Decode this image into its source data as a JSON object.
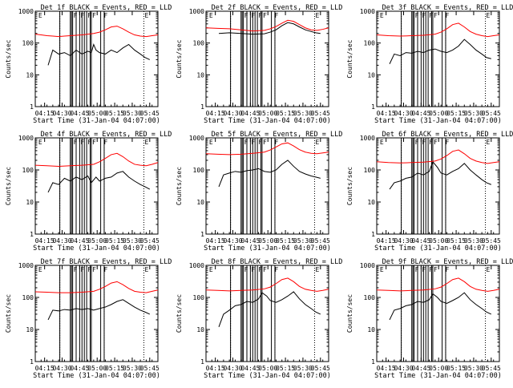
{
  "chart_data": [
    {
      "type": "line",
      "title": "Det 1f BLACK = Events, RED = LLD",
      "xlabel": "Start Time (31-Jan-04 04:07:00)",
      "ylabel": "Counts/sec",
      "xticks": [
        "04:15",
        "04:30",
        "04:45",
        "05:00",
        "05:15",
        "05:30",
        "05:45"
      ],
      "yticks": [
        "1",
        "10",
        "100",
        "1000"
      ],
      "ylim": [
        1,
        1000
      ],
      "yscale": "log",
      "xlim_minutes": [
        0,
        105
      ],
      "series": [
        {
          "name": "Events",
          "color": "#000000",
          "x": [
            11,
            15,
            20,
            25,
            30,
            35,
            40,
            45,
            48,
            50,
            52,
            55,
            60,
            65,
            70,
            75,
            80,
            85,
            90,
            94,
            98
          ],
          "values": [
            20,
            60,
            45,
            50,
            40,
            60,
            45,
            55,
            50,
            90,
            60,
            50,
            45,
            60,
            50,
            70,
            90,
            60,
            45,
            35,
            30
          ]
        },
        {
          "name": "LLD",
          "color": "#ff0000",
          "x": [
            0,
            5,
            10,
            15,
            20,
            25,
            30,
            35,
            40,
            45,
            50,
            55,
            60,
            65,
            70,
            75,
            80,
            85,
            90,
            95,
            100,
            105
          ],
          "values": [
            190,
            180,
            170,
            165,
            160,
            165,
            170,
            175,
            180,
            190,
            200,
            220,
            260,
            320,
            340,
            280,
            220,
            180,
            165,
            160,
            170,
            180
          ]
        }
      ]
    },
    {
      "type": "line",
      "title": "Det 2f BLACK = Events, RED = LLD",
      "xlabel": "Start Time (31-Jan-04 04:07:00)",
      "ylabel": "Counts/sec",
      "xticks": [
        "04:15",
        "04:30",
        "04:45",
        "05:00",
        "05:15",
        "05:30",
        "05:45"
      ],
      "yticks": [
        "1",
        "10",
        "100",
        "1000"
      ],
      "ylim": [
        1,
        1000
      ],
      "yscale": "log",
      "xlim_minutes": [
        0,
        105
      ],
      "series": [
        {
          "name": "Events",
          "color": "#000000",
          "x": [
            11,
            20,
            30,
            40,
            50,
            55,
            60,
            65,
            70,
            75,
            80,
            85,
            90,
            94,
            98
          ],
          "values": [
            200,
            210,
            200,
            190,
            195,
            220,
            260,
            350,
            440,
            400,
            320,
            260,
            230,
            210,
            200
          ]
        },
        {
          "name": "LLD",
          "color": "#ff0000",
          "x": [
            0,
            10,
            20,
            30,
            40,
            50,
            55,
            60,
            65,
            70,
            75,
            80,
            85,
            90,
            95,
            100,
            105
          ],
          "values": [
            300,
            290,
            280,
            260,
            240,
            250,
            280,
            330,
            420,
            520,
            480,
            380,
            300,
            260,
            250,
            270,
            300
          ]
        }
      ]
    },
    {
      "type": "line",
      "title": "Det 3f BLACK = Events, RED = LLD",
      "xlabel": "Start Time (31-Jan-04 04:07:00)",
      "ylabel": "Counts/sec",
      "xticks": [
        "04:15",
        "04:30",
        "04:45",
        "05:00",
        "05:15",
        "05:30",
        "05:45"
      ],
      "yticks": [
        "1",
        "10",
        "100",
        "1000"
      ],
      "ylim": [
        1,
        1000
      ],
      "yscale": "log",
      "xlim_minutes": [
        0,
        105
      ],
      "series": [
        {
          "name": "Events",
          "color": "#000000",
          "x": [
            11,
            15,
            20,
            25,
            30,
            35,
            40,
            45,
            50,
            55,
            60,
            65,
            70,
            75,
            80,
            85,
            90,
            94,
            98
          ],
          "values": [
            22,
            45,
            40,
            50,
            48,
            55,
            50,
            60,
            65,
            55,
            50,
            60,
            80,
            130,
            90,
            60,
            45,
            35,
            32
          ]
        },
        {
          "name": "LLD",
          "color": "#ff0000",
          "x": [
            0,
            10,
            20,
            30,
            40,
            50,
            55,
            60,
            65,
            70,
            75,
            80,
            85,
            90,
            95,
            100,
            105
          ],
          "values": [
            180,
            170,
            165,
            170,
            175,
            190,
            220,
            280,
            380,
            420,
            320,
            230,
            190,
            170,
            160,
            170,
            180
          ]
        }
      ]
    },
    {
      "type": "line",
      "title": "Det 4f BLACK = Events, RED = LLD",
      "xlabel": "Start Time (31-Jan-04 04:07:00)",
      "ylabel": "Counts/sec",
      "xticks": [
        "04:15",
        "04:30",
        "04:45",
        "05:00",
        "05:15",
        "05:30",
        "05:45"
      ],
      "yticks": [
        "1",
        "10",
        "100",
        "1000"
      ],
      "ylim": [
        1,
        1000
      ],
      "yscale": "log",
      "xlim_minutes": [
        0,
        105
      ],
      "series": [
        {
          "name": "Events",
          "color": "#000000",
          "x": [
            11,
            15,
            20,
            25,
            30,
            35,
            40,
            45,
            48,
            52,
            55,
            60,
            65,
            70,
            75,
            80,
            85,
            90,
            94,
            98
          ],
          "values": [
            20,
            40,
            35,
            55,
            45,
            60,
            50,
            65,
            40,
            60,
            45,
            55,
            60,
            80,
            90,
            60,
            45,
            35,
            30,
            25
          ]
        },
        {
          "name": "LLD",
          "color": "#ff0000",
          "x": [
            0,
            10,
            20,
            30,
            40,
            50,
            55,
            60,
            65,
            70,
            75,
            80,
            85,
            90,
            95,
            100,
            105
          ],
          "values": [
            140,
            135,
            130,
            135,
            140,
            150,
            180,
            230,
            300,
            330,
            260,
            190,
            150,
            140,
            135,
            150,
            170
          ]
        }
      ]
    },
    {
      "type": "line",
      "title": "Det 5f BLACK = Events, RED = LLD",
      "xlabel": "Start Time (31-Jan-04 04:07:00)",
      "ylabel": "Counts/sec",
      "xticks": [
        "04:15",
        "04:30",
        "04:45",
        "05:00",
        "05:15",
        "05:30",
        "05:45"
      ],
      "yticks": [
        "1",
        "10",
        "100",
        "1000"
      ],
      "ylim": [
        1,
        1000
      ],
      "yscale": "log",
      "xlim_minutes": [
        0,
        105
      ],
      "series": [
        {
          "name": "Events",
          "color": "#000000",
          "x": [
            11,
            15,
            20,
            25,
            30,
            35,
            40,
            45,
            50,
            55,
            60,
            65,
            70,
            75,
            80,
            85,
            90,
            94,
            98
          ],
          "values": [
            30,
            70,
            80,
            90,
            85,
            95,
            100,
            110,
            90,
            85,
            100,
            150,
            200,
            130,
            90,
            75,
            65,
            60,
            55
          ]
        },
        {
          "name": "LLD",
          "color": "#ff0000",
          "x": [
            0,
            10,
            20,
            30,
            40,
            50,
            55,
            60,
            65,
            70,
            75,
            80,
            85,
            90,
            95,
            100,
            105
          ],
          "values": [
            320,
            310,
            300,
            310,
            330,
            360,
            420,
            520,
            650,
            700,
            560,
            430,
            360,
            330,
            320,
            340,
            360
          ]
        }
      ]
    },
    {
      "type": "line",
      "title": "Det 6f BLACK = Events, RED = LLD",
      "xlabel": "Start Time (31-Jan-04 04:07:00)",
      "ylabel": "Counts/sec",
      "xticks": [
        "04:15",
        "04:30",
        "04:45",
        "05:00",
        "05:15",
        "05:30",
        "05:45"
      ],
      "yticks": [
        "1",
        "10",
        "100",
        "1000"
      ],
      "ylim": [
        1,
        1000
      ],
      "yscale": "log",
      "xlim_minutes": [
        0,
        105
      ],
      "series": [
        {
          "name": "Events",
          "color": "#000000",
          "x": [
            11,
            15,
            20,
            25,
            30,
            35,
            40,
            45,
            48,
            52,
            55,
            60,
            65,
            70,
            75,
            80,
            85,
            90,
            94,
            98
          ],
          "values": [
            25,
            40,
            45,
            55,
            60,
            80,
            70,
            90,
            180,
            120,
            80,
            70,
            90,
            110,
            160,
            100,
            70,
            50,
            40,
            35
          ]
        },
        {
          "name": "LLD",
          "color": "#ff0000",
          "x": [
            0,
            10,
            20,
            30,
            40,
            50,
            55,
            60,
            65,
            70,
            75,
            80,
            85,
            90,
            95,
            100,
            105
          ],
          "values": [
            180,
            170,
            165,
            170,
            175,
            190,
            220,
            280,
            380,
            420,
            320,
            230,
            190,
            170,
            160,
            170,
            180
          ]
        }
      ]
    },
    {
      "type": "line",
      "title": "Det 7f BLACK = Events, RED = LLD",
      "xlabel": "Start Time (31-Jan-04 04:07:00)",
      "ylabel": "Counts/sec",
      "xticks": [
        "04:15",
        "04:30",
        "04:45",
        "05:00",
        "05:15",
        "05:30",
        "05:45"
      ],
      "yticks": [
        "1",
        "10",
        "100",
        "1000"
      ],
      "ylim": [
        1,
        1000
      ],
      "yscale": "log",
      "xlim_minutes": [
        0,
        105
      ],
      "series": [
        {
          "name": "Events",
          "color": "#000000",
          "x": [
            11,
            15,
            20,
            25,
            30,
            35,
            40,
            45,
            50,
            55,
            60,
            65,
            70,
            75,
            80,
            85,
            90,
            94,
            98
          ],
          "values": [
            20,
            40,
            38,
            42,
            40,
            45,
            42,
            45,
            40,
            45,
            50,
            60,
            75,
            85,
            65,
            50,
            40,
            35,
            30
          ]
        },
        {
          "name": "LLD",
          "color": "#ff0000",
          "x": [
            0,
            10,
            20,
            30,
            40,
            50,
            55,
            60,
            65,
            70,
            75,
            80,
            85,
            90,
            95,
            100,
            105
          ],
          "values": [
            150,
            145,
            140,
            140,
            145,
            155,
            180,
            220,
            280,
            310,
            250,
            190,
            155,
            145,
            140,
            155,
            170
          ]
        }
      ]
    },
    {
      "type": "line",
      "title": "Det 8f BLACK = Events, RED = LLD",
      "xlabel": "Start Time (31-Jan-04 04:07:00)",
      "ylabel": "Counts/sec",
      "xticks": [
        "04:15",
        "04:30",
        "04:45",
        "05:00",
        "05:15",
        "05:30",
        "05:45"
      ],
      "yticks": [
        "1",
        "10",
        "100",
        "1000"
      ],
      "ylim": [
        1,
        1000
      ],
      "yscale": "log",
      "xlim_minutes": [
        0,
        105
      ],
      "series": [
        {
          "name": "Events",
          "color": "#000000",
          "x": [
            11,
            15,
            20,
            25,
            30,
            35,
            40,
            45,
            48,
            52,
            55,
            60,
            65,
            70,
            75,
            80,
            85,
            90,
            94,
            98
          ],
          "values": [
            12,
            30,
            40,
            55,
            60,
            75,
            70,
            90,
            140,
            110,
            80,
            70,
            85,
            110,
            150,
            90,
            60,
            45,
            35,
            30
          ]
        },
        {
          "name": "LLD",
          "color": "#ff0000",
          "x": [
            0,
            10,
            20,
            30,
            40,
            50,
            55,
            60,
            65,
            70,
            75,
            80,
            85,
            90,
            95,
            100,
            105
          ],
          "values": [
            170,
            165,
            160,
            165,
            170,
            185,
            210,
            270,
            360,
            400,
            310,
            220,
            180,
            165,
            155,
            165,
            180
          ]
        }
      ]
    },
    {
      "type": "line",
      "title": "Det 9f BLACK = Events, RED = LLD",
      "xlabel": "Start Time (31-Jan-04 04:07:00)",
      "ylabel": "Counts/sec",
      "xticks": [
        "04:15",
        "04:30",
        "04:45",
        "05:00",
        "05:15",
        "05:30",
        "05:45"
      ],
      "yticks": [
        "1",
        "10",
        "100",
        "1000"
      ],
      "ylim": [
        1,
        1000
      ],
      "yscale": "log",
      "xlim_minutes": [
        0,
        105
      ],
      "series": [
        {
          "name": "Events",
          "color": "#000000",
          "x": [
            11,
            15,
            20,
            25,
            30,
            35,
            40,
            45,
            48,
            52,
            55,
            60,
            65,
            70,
            75,
            80,
            85,
            90,
            94,
            98
          ],
          "values": [
            20,
            40,
            45,
            55,
            60,
            75,
            70,
            85,
            130,
            100,
            75,
            65,
            80,
            100,
            140,
            85,
            60,
            45,
            35,
            30
          ]
        },
        {
          "name": "LLD",
          "color": "#ff0000",
          "x": [
            0,
            10,
            20,
            30,
            40,
            50,
            55,
            60,
            65,
            70,
            75,
            80,
            85,
            90,
            95,
            100,
            105
          ],
          "values": [
            170,
            165,
            160,
            165,
            170,
            185,
            210,
            270,
            360,
            400,
            310,
            220,
            180,
            165,
            155,
            165,
            180
          ]
        }
      ]
    }
  ],
  "markers": {
    "attenuator_labels": [
      "E",
      "F",
      "F",
      "F",
      "F",
      "F",
      "E"
    ],
    "attenuator_x": [
      2,
      32,
      38,
      44,
      48,
      58,
      93
    ],
    "interval_lines_x": [
      21,
      30,
      31,
      32,
      35,
      38,
      40,
      42,
      44,
      47,
      48,
      56,
      59
    ],
    "dotted_lines_x": [
      21,
      59,
      93
    ]
  }
}
